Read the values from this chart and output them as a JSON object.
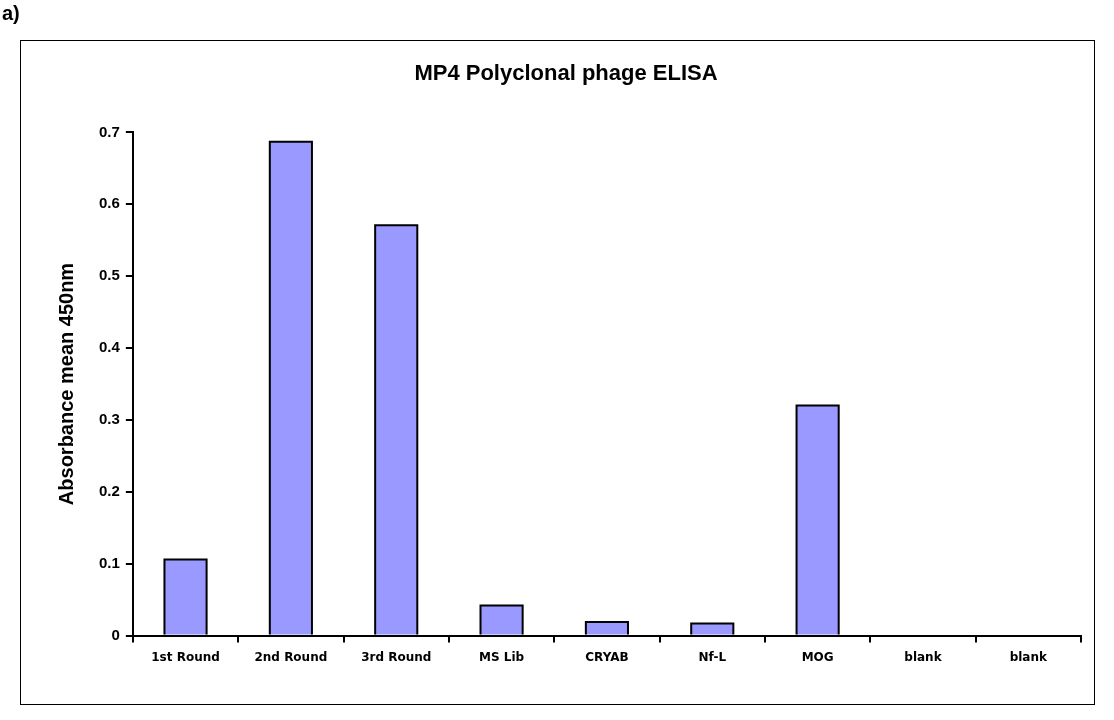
{
  "chart_data": {
    "type": "bar",
    "title": "MP4 Polyclonal phage ELISA",
    "ylabel": "Absorbance mean 450nm",
    "categories": [
      "1st Round",
      "2nd Round",
      "3rd Round",
      "MS Lib",
      "CRYAB",
      "Nf-L",
      "MOG",
      "blank",
      "blank"
    ],
    "values": [
      0.106,
      0.687,
      0.571,
      0.042,
      0.019,
      0.017,
      0.32,
      0,
      0
    ],
    "color": "#9999ff",
    "ylim": [
      0,
      0.7
    ],
    "yticks": [
      0,
      0.1,
      0.2,
      0.3,
      0.4,
      0.5,
      0.6,
      0.7
    ],
    "annotations": [
      "a)"
    ]
  }
}
